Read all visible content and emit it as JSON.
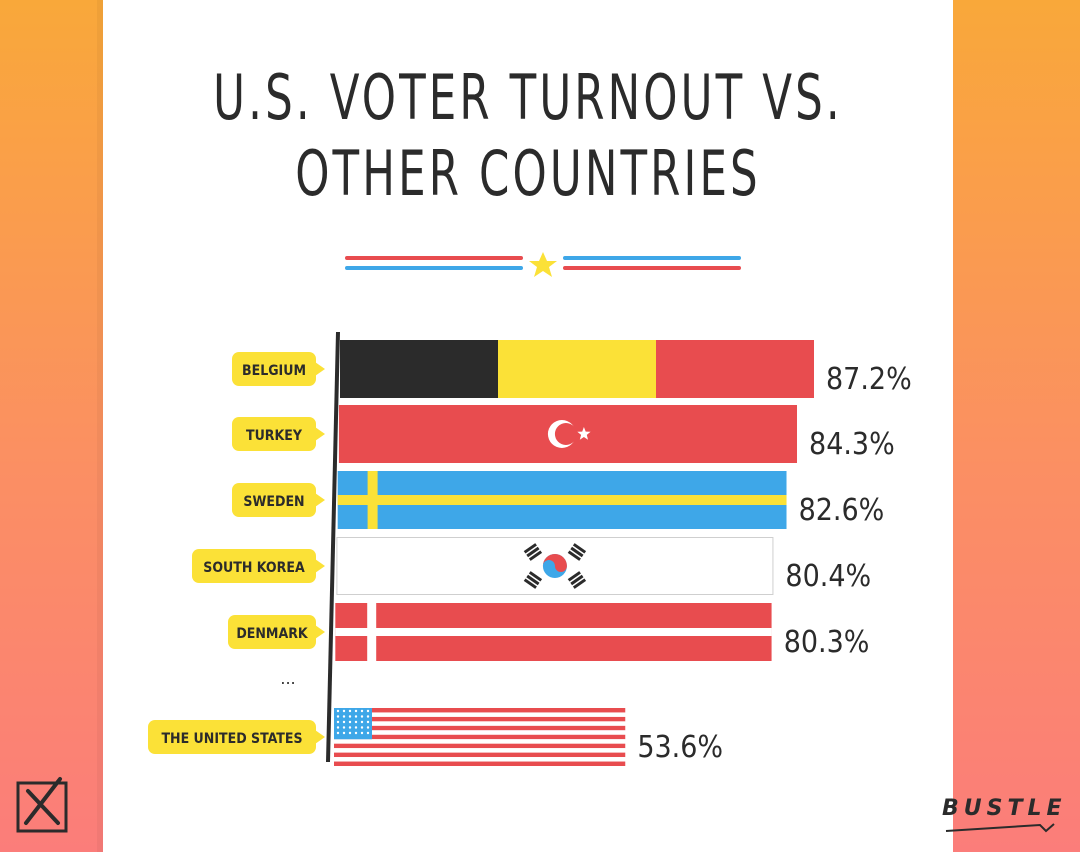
{
  "header": {
    "title_line1": "U.S. VOTER TURNOUT VS.",
    "title_line2": "OTHER COUNTRIES"
  },
  "ellipsis": "...",
  "brand": {
    "logo_text": "BUSTLE"
  },
  "colors": {
    "background_top": "#f9a83a",
    "background_bottom": "#fb7d7a",
    "tag_yellow": "#fbe137",
    "divider_red": "#e84c4f",
    "divider_blue": "#3ea7e8",
    "star": "#fbe137"
  },
  "icons": [
    "checkbox-x-icon",
    "star-icon"
  ],
  "chart_data": {
    "type": "bar",
    "orientation": "horizontal",
    "title": "U.S. VOTER TURNOUT VS. OTHER COUNTRIES",
    "categories": [
      "BELGIUM",
      "TURKEY",
      "SWEDEN",
      "SOUTH KOREA",
      "DENMARK",
      "THE UNITED STATES"
    ],
    "values": [
      87.2,
      84.3,
      82.6,
      80.4,
      80.3,
      53.6
    ],
    "value_labels": [
      "87.2%",
      "84.3%",
      "82.6%",
      "80.4%",
      "80.3%",
      "53.6%"
    ],
    "unit": "%",
    "bar_styles": [
      "flag-belgium",
      "flag-turkey",
      "flag-sweden",
      "flag-south-korea",
      "flag-denmark",
      "flag-united-states"
    ],
    "grid": false,
    "legend": "none"
  }
}
